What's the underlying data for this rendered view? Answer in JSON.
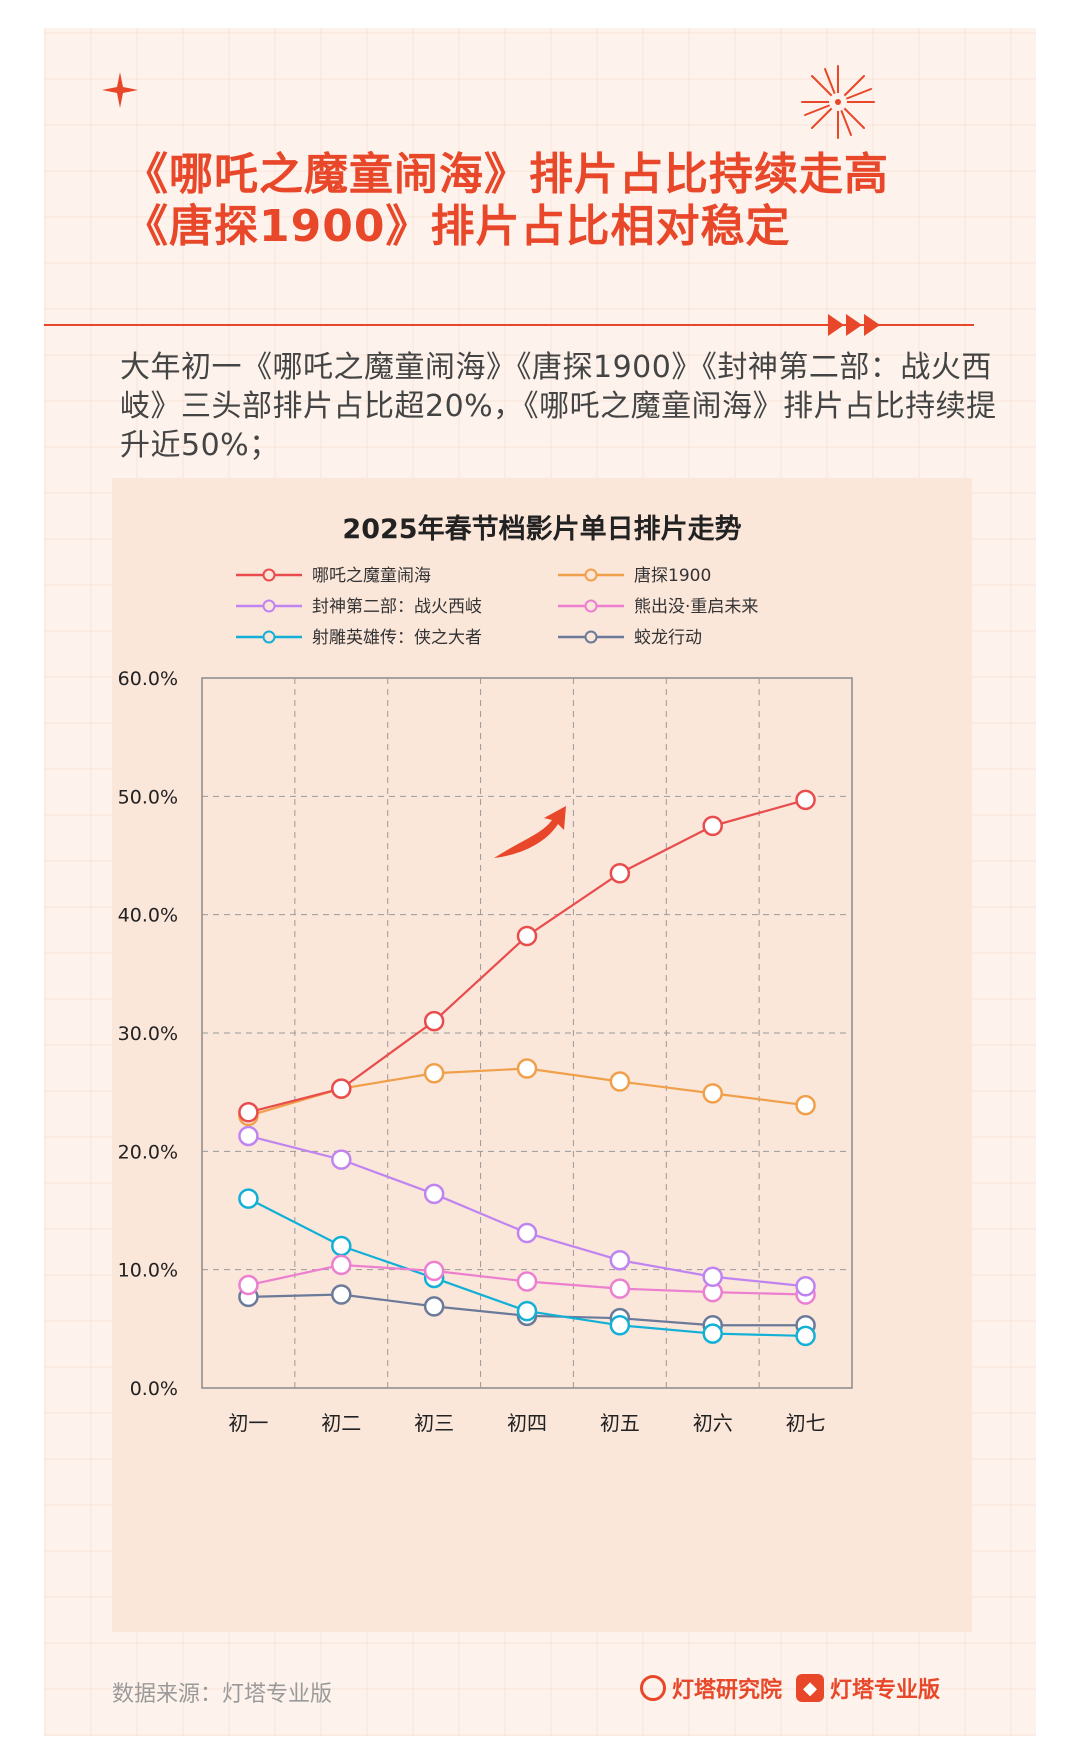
{
  "header": {
    "title_line1": "《哪吒之魔童闹海》排片占比持续走高",
    "title_line2": "《唐探1900》排片占比相对稳定"
  },
  "intro_text": "大年初一《哪吒之魔童闹海》《唐探1900》《封神第二部：战火西岐》三头部排片占比超20%，《哪吒之魔童闹海》排片占比持续提升近50%；",
  "footer": {
    "source": "数据来源：灯塔专业版",
    "brand1": "灯塔研究院",
    "brand2": "灯塔专业版"
  },
  "colors": {
    "accent": "#e8472a",
    "panel": "#fbe6da",
    "background": "#fdf3ec"
  },
  "chart_data": {
    "type": "line",
    "title": "2025年春节档影片单日排片走势",
    "categories": [
      "初一",
      "初二",
      "初三",
      "初四",
      "初五",
      "初六",
      "初七"
    ],
    "ylim": [
      0,
      60
    ],
    "yticks": [
      "0.0%",
      "10.0%",
      "20.0%",
      "30.0%",
      "40.0%",
      "50.0%",
      "60.0%"
    ],
    "grid": true,
    "legend_position": "top",
    "series": [
      {
        "name": "哪吒之魔童闹海",
        "color": "#e84c4c",
        "values": [
          23.3,
          25.3,
          31.0,
          38.2,
          43.5,
          47.5,
          49.7
        ]
      },
      {
        "name": "唐探1900",
        "color": "#f0a04b",
        "values": [
          23.0,
          25.3,
          26.6,
          27.0,
          25.9,
          24.9,
          23.9
        ]
      },
      {
        "name": "封神第二部：战火西岐",
        "color": "#c084f0",
        "values": [
          21.3,
          19.3,
          16.4,
          13.1,
          10.8,
          9.4,
          8.6
        ]
      },
      {
        "name": "熊出没·重启未来",
        "color": "#ec7fcf",
        "values": [
          8.7,
          10.4,
          9.9,
          9.0,
          8.4,
          8.1,
          7.9
        ]
      },
      {
        "name": "射雕英雄传：侠之大者",
        "color": "#12b0d6",
        "values": [
          16.0,
          12.0,
          9.3,
          6.5,
          5.3,
          4.6,
          4.4
        ]
      },
      {
        "name": "蛟龙行动",
        "color": "#6b7a99",
        "values": [
          7.7,
          7.9,
          6.9,
          6.1,
          5.9,
          5.3,
          5.3
        ]
      }
    ]
  }
}
